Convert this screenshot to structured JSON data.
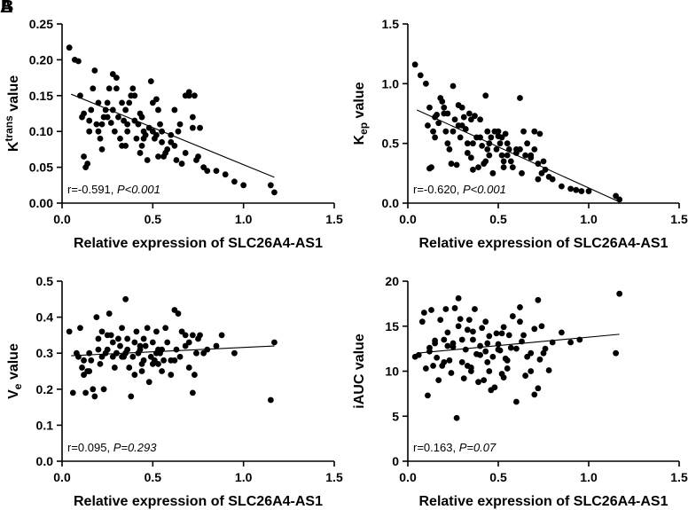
{
  "panel_letters": [
    "A",
    "B"
  ],
  "chart_data": [
    {
      "type": "scatter",
      "title": "",
      "xlabel": "Relative expression of SLC26A4-AS1",
      "ylabel_parts": [
        "K",
        "trans",
        " value"
      ],
      "xlim": [
        0,
        1.5
      ],
      "ylim": [
        0,
        0.25
      ],
      "xticks": [
        "0.0",
        "0.5",
        "1.0",
        "1.5"
      ],
      "yticks": [
        "0.00",
        "0.05",
        "0.10",
        "0.15",
        "0.20",
        "0.25"
      ],
      "grid": false,
      "stat": {
        "r": "r=-0.591, ",
        "p": "P<0.001"
      },
      "fit": {
        "x1": 0.05,
        "y1": 0.152,
        "x2": 1.17,
        "y2": 0.036
      },
      "x": [
        0.04,
        0.07,
        0.09,
        0.1,
        0.11,
        0.12,
        0.13,
        0.14,
        0.15,
        0.16,
        0.17,
        0.18,
        0.19,
        0.2,
        0.21,
        0.22,
        0.23,
        0.24,
        0.25,
        0.26,
        0.27,
        0.28,
        0.29,
        0.3,
        0.31,
        0.32,
        0.33,
        0.34,
        0.35,
        0.36,
        0.37,
        0.38,
        0.39,
        0.4,
        0.41,
        0.42,
        0.43,
        0.44,
        0.45,
        0.46,
        0.47,
        0.48,
        0.49,
        0.5,
        0.51,
        0.52,
        0.53,
        0.54,
        0.55,
        0.56,
        0.57,
        0.58,
        0.6,
        0.62,
        0.64,
        0.66,
        0.68,
        0.7,
        0.72,
        0.74,
        0.76,
        0.8,
        0.85,
        0.9,
        0.95,
        1.0,
        1.15,
        1.17,
        0.12,
        0.2,
        0.28,
        0.36,
        0.44,
        0.52,
        0.6,
        0.68,
        0.75,
        0.3,
        0.4,
        0.5,
        0.65,
        0.7,
        0.78,
        0.15,
        0.25,
        0.35,
        0.45,
        0.55,
        0.62,
        0.72,
        0.22,
        0.33,
        0.43,
        0.53,
        0.63,
        0.73
      ],
      "y": [
        0.217,
        0.2,
        0.198,
        0.15,
        0.12,
        0.065,
        0.05,
        0.055,
        0.115,
        0.13,
        0.16,
        0.185,
        0.11,
        0.14,
        0.09,
        0.075,
        0.12,
        0.13,
        0.14,
        0.16,
        0.112,
        0.18,
        0.1,
        0.175,
        0.12,
        0.09,
        0.14,
        0.115,
        0.08,
        0.1,
        0.14,
        0.15,
        0.16,
        0.115,
        0.09,
        0.11,
        0.125,
        0.08,
        0.1,
        0.095,
        0.06,
        0.105,
        0.17,
        0.1,
        0.09,
        0.095,
        0.13,
        0.11,
        0.1,
        0.065,
        0.07,
        0.075,
        0.095,
        0.08,
        0.1,
        0.055,
        0.15,
        0.155,
        0.12,
        0.06,
        0.105,
        0.045,
        0.045,
        0.04,
        0.03,
        0.025,
        0.025,
        0.015,
        0.125,
        0.1,
        0.13,
        0.11,
        0.12,
        0.145,
        0.085,
        0.07,
        0.065,
        0.16,
        0.15,
        0.14,
        0.11,
        0.15,
        0.05,
        0.1,
        0.12,
        0.13,
        0.09,
        0.085,
        0.13,
        0.105,
        0.11,
        0.08,
        0.07,
        0.065,
        0.06,
        0.15
      ]
    },
    {
      "type": "scatter",
      "title": "",
      "xlabel": "Relative expression of SLC26A4-AS1",
      "ylabel_parts": [
        "K",
        "ep",
        " value"
      ],
      "xlim": [
        0,
        1.5
      ],
      "ylim": [
        0,
        1.5
      ],
      "xticks": [
        "0.0",
        "0.5",
        "1.0",
        "1.5"
      ],
      "yticks": [
        "0.0",
        "0.5",
        "1.0",
        "1.5"
      ],
      "grid": false,
      "stat": {
        "r": "r=-0.620, ",
        "p": "P<0.001"
      },
      "fit": {
        "x1": 0.05,
        "y1": 0.78,
        "x2": 1.17,
        "y2": 0.01
      },
      "x": [
        0.04,
        0.07,
        0.1,
        0.11,
        0.12,
        0.13,
        0.14,
        0.15,
        0.16,
        0.17,
        0.18,
        0.19,
        0.2,
        0.21,
        0.22,
        0.23,
        0.24,
        0.25,
        0.26,
        0.27,
        0.28,
        0.29,
        0.3,
        0.31,
        0.32,
        0.33,
        0.34,
        0.35,
        0.36,
        0.37,
        0.38,
        0.39,
        0.4,
        0.41,
        0.42,
        0.43,
        0.44,
        0.45,
        0.46,
        0.47,
        0.48,
        0.49,
        0.5,
        0.51,
        0.52,
        0.53,
        0.54,
        0.55,
        0.56,
        0.57,
        0.58,
        0.6,
        0.62,
        0.64,
        0.66,
        0.68,
        0.7,
        0.72,
        0.74,
        0.76,
        0.8,
        0.85,
        0.9,
        0.93,
        0.96,
        1.0,
        1.15,
        1.17,
        0.12,
        0.2,
        0.28,
        0.36,
        0.44,
        0.52,
        0.6,
        0.68,
        0.75,
        0.3,
        0.4,
        0.5,
        0.65,
        0.7,
        0.78,
        0.15,
        0.25,
        0.35,
        0.45,
        0.55,
        0.62,
        0.72,
        0.22,
        0.33,
        0.43,
        0.53,
        0.63,
        0.73
      ],
      "y": [
        1.16,
        1.07,
        1.0,
        0.65,
        0.29,
        0.3,
        0.6,
        0.72,
        0.74,
        0.67,
        0.88,
        0.85,
        0.8,
        0.6,
        0.5,
        0.45,
        0.33,
        0.98,
        0.7,
        0.32,
        0.82,
        0.55,
        0.8,
        0.72,
        0.62,
        0.42,
        0.75,
        0.38,
        0.28,
        0.73,
        0.55,
        0.3,
        0.7,
        0.48,
        0.33,
        0.9,
        0.6,
        0.4,
        0.55,
        0.25,
        0.6,
        0.45,
        0.56,
        0.5,
        0.4,
        0.35,
        0.58,
        0.5,
        0.45,
        0.35,
        0.3,
        0.45,
        0.88,
        0.6,
        0.5,
        0.4,
        0.6,
        0.33,
        0.25,
        0.28,
        0.2,
        0.14,
        0.12,
        0.11,
        0.1,
        0.1,
        0.06,
        0.03,
        0.8,
        0.75,
        0.65,
        0.5,
        0.45,
        0.55,
        0.42,
        0.38,
        0.35,
        0.65,
        0.55,
        0.6,
        0.4,
        0.45,
        0.22,
        0.55,
        0.6,
        0.7,
        0.5,
        0.4,
        0.45,
        0.2,
        0.75,
        0.5,
        0.35,
        0.3,
        0.25,
        0.58
      ]
    },
    {
      "type": "scatter",
      "title": "",
      "xlabel": "Relative expression of SLC26A4-AS1",
      "ylabel_parts": [
        "V",
        "e",
        " value"
      ],
      "xlim": [
        0,
        1.5
      ],
      "ylim": [
        0,
        0.5
      ],
      "xticks": [
        "0.0",
        "0.5",
        "1.0",
        "1.5"
      ],
      "yticks": [
        "0.0",
        "0.1",
        "0.2",
        "0.3",
        "0.4",
        "0.5"
      ],
      "grid": false,
      "stat": {
        "r": "r=0.095, ",
        "p": "P=0.293"
      },
      "fit": {
        "x1": 0.05,
        "y1": 0.293,
        "x2": 1.17,
        "y2": 0.32
      },
      "x": [
        0.04,
        0.06,
        0.08,
        0.09,
        0.1,
        0.11,
        0.12,
        0.13,
        0.14,
        0.15,
        0.16,
        0.17,
        0.18,
        0.19,
        0.2,
        0.21,
        0.22,
        0.23,
        0.24,
        0.25,
        0.26,
        0.27,
        0.28,
        0.29,
        0.3,
        0.31,
        0.32,
        0.33,
        0.34,
        0.35,
        0.36,
        0.37,
        0.38,
        0.39,
        0.4,
        0.41,
        0.42,
        0.43,
        0.44,
        0.45,
        0.46,
        0.47,
        0.48,
        0.49,
        0.5,
        0.51,
        0.52,
        0.53,
        0.54,
        0.55,
        0.56,
        0.57,
        0.58,
        0.6,
        0.62,
        0.64,
        0.66,
        0.68,
        0.7,
        0.72,
        0.74,
        0.76,
        0.8,
        0.85,
        0.88,
        0.95,
        1.15,
        1.17,
        0.12,
        0.2,
        0.28,
        0.36,
        0.44,
        0.52,
        0.6,
        0.68,
        0.75,
        0.3,
        0.4,
        0.5,
        0.65,
        0.7,
        0.78,
        0.15,
        0.25,
        0.35,
        0.45,
        0.55,
        0.62,
        0.72,
        0.22,
        0.33,
        0.43,
        0.53,
        0.63,
        0.73
      ],
      "y": [
        0.36,
        0.19,
        0.3,
        0.29,
        0.37,
        0.26,
        0.24,
        0.19,
        0.25,
        0.3,
        0.28,
        0.2,
        0.18,
        0.4,
        0.34,
        0.27,
        0.29,
        0.2,
        0.3,
        0.31,
        0.41,
        0.35,
        0.29,
        0.26,
        0.3,
        0.34,
        0.32,
        0.37,
        0.29,
        0.45,
        0.34,
        0.26,
        0.18,
        0.29,
        0.24,
        0.36,
        0.3,
        0.32,
        0.27,
        0.34,
        0.32,
        0.37,
        0.22,
        0.29,
        0.33,
        0.28,
        0.36,
        0.31,
        0.3,
        0.25,
        0.28,
        0.37,
        0.33,
        0.24,
        0.42,
        0.41,
        0.36,
        0.35,
        0.26,
        0.19,
        0.3,
        0.35,
        0.31,
        0.32,
        0.35,
        0.3,
        0.17,
        0.33,
        0.28,
        0.31,
        0.33,
        0.31,
        0.25,
        0.3,
        0.28,
        0.32,
        0.34,
        0.3,
        0.33,
        0.27,
        0.29,
        0.33,
        0.3,
        0.25,
        0.35,
        0.3,
        0.28,
        0.31,
        0.28,
        0.35,
        0.36,
        0.29,
        0.31,
        0.27,
        0.31,
        0.24
      ]
    },
    {
      "type": "scatter",
      "title": "",
      "xlabel": "Relative expression of SLC26A4-AS1",
      "ylabel_parts": [
        "iAUC",
        "",
        " value"
      ],
      "xlim": [
        0,
        1.5
      ],
      "ylim": [
        0,
        20
      ],
      "xticks": [
        "0.0",
        "0.5",
        "1.0",
        "1.5"
      ],
      "yticks": [
        "0",
        "5",
        "10",
        "15",
        "20"
      ],
      "grid": false,
      "stat": {
        "r": "r=0.163, ",
        "p": "P=0.07"
      },
      "fit": {
        "x1": 0.05,
        "y1": 12.0,
        "x2": 1.17,
        "y2": 14.1
      },
      "x": [
        0.04,
        0.06,
        0.08,
        0.09,
        0.1,
        0.11,
        0.12,
        0.13,
        0.14,
        0.15,
        0.16,
        0.17,
        0.18,
        0.19,
        0.2,
        0.21,
        0.22,
        0.23,
        0.24,
        0.25,
        0.26,
        0.27,
        0.28,
        0.29,
        0.3,
        0.31,
        0.32,
        0.33,
        0.34,
        0.35,
        0.36,
        0.37,
        0.38,
        0.39,
        0.4,
        0.41,
        0.42,
        0.43,
        0.44,
        0.45,
        0.46,
        0.47,
        0.48,
        0.49,
        0.5,
        0.51,
        0.52,
        0.53,
        0.54,
        0.55,
        0.56,
        0.57,
        0.58,
        0.6,
        0.62,
        0.64,
        0.66,
        0.68,
        0.7,
        0.72,
        0.74,
        0.76,
        0.8,
        0.85,
        0.9,
        0.95,
        1.15,
        1.17,
        0.12,
        0.2,
        0.28,
        0.36,
        0.44,
        0.52,
        0.6,
        0.68,
        0.75,
        0.3,
        0.4,
        0.5,
        0.65,
        0.7,
        0.78,
        0.15,
        0.25,
        0.35,
        0.45,
        0.55,
        0.62,
        0.72,
        0.22,
        0.33,
        0.43,
        0.53,
        0.63,
        0.73
      ],
      "y": [
        11.6,
        11.8,
        15.5,
        16.5,
        10.3,
        7.3,
        12.2,
        16.8,
        10.6,
        13.1,
        11.5,
        9.0,
        15.7,
        10.6,
        13.5,
        16.9,
        12.8,
        11.2,
        9.8,
        13.1,
        17.0,
        4.8,
        18.1,
        15.8,
        11.0,
        9.2,
        12.4,
        14.6,
        15.7,
        10.4,
        14.4,
        16.9,
        11.9,
        8.8,
        12.8,
        14.8,
        9.0,
        15.5,
        13.1,
        10.0,
        7.9,
        11.6,
        8.2,
        14.2,
        13.0,
        12.3,
        9.7,
        14.9,
        11.4,
        10.3,
        14.0,
        12.6,
        16.1,
        6.6,
        17.1,
        14.0,
        11.6,
        12.0,
        7.4,
        17.9,
        15.0,
        12.5,
        13.2,
        14.3,
        13.2,
        13.5,
        12.0,
        18.6,
        12.6,
        11.0,
        15.0,
        13.5,
        11.0,
        14.2,
        12.5,
        10.0,
        12.0,
        13.5,
        11.8,
        12.4,
        9.5,
        14.7,
        10.1,
        13.4,
        12.7,
        10.0,
        13.9,
        11.2,
        15.5,
        8.1,
        14.3,
        10.6,
        12.2,
        9.3,
        13.3,
        11.3
      ]
    }
  ]
}
